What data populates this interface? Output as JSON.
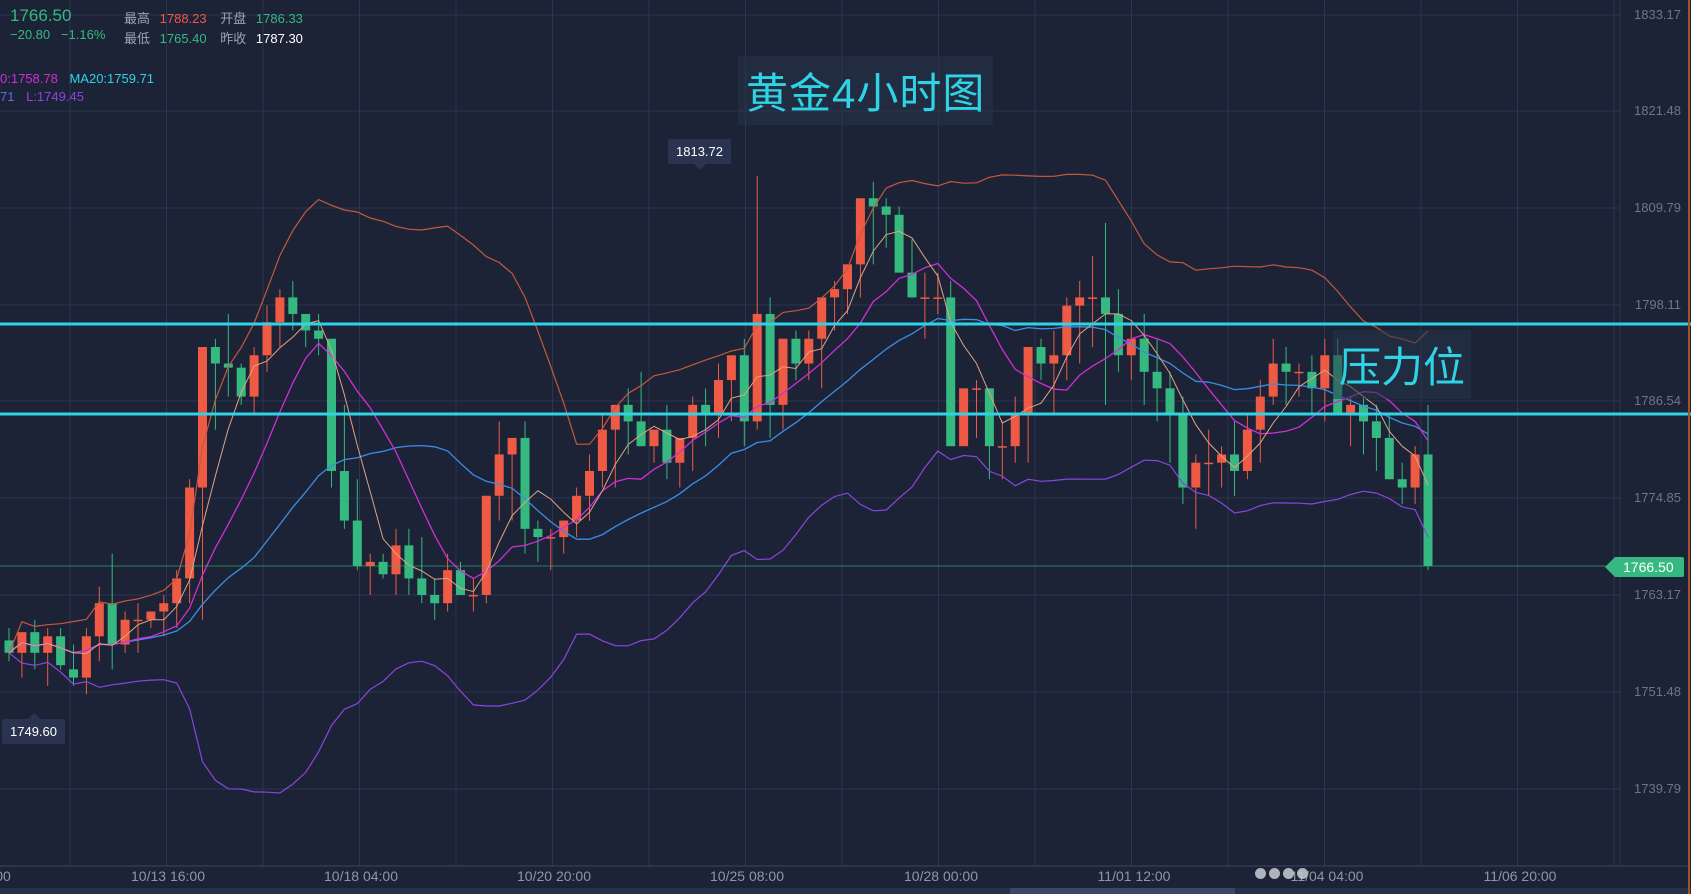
{
  "quote": {
    "last": "1766.50",
    "change": "−20.80",
    "change_pct": "−1.16%",
    "high_label": "最高",
    "high": "1788.23",
    "open_label": "开盘",
    "open": "1786.33",
    "low_label": "最低",
    "low": "1765.40",
    "prev_close_label": "昨收",
    "prev_close": "1787.30"
  },
  "indicators": {
    "ma10": "0:1758.78",
    "ma20": "MA20:1759.71",
    "boll_mid": "71",
    "boll_low": "L:1749.45"
  },
  "annotations": {
    "title": "黄金4小时图",
    "resistance_label": "压力位",
    "max_label": "1813.72",
    "min_label": "1749.60",
    "current_price_tag": "1766.50"
  },
  "colors": {
    "background": "#1c2336",
    "up": "#ef5a45",
    "down": "#35b980",
    "resistance": "#2fd3e6",
    "ma5": "#e0a383",
    "ma10": "#d02ed6",
    "ma20": "#3a8ee6",
    "boll_upper": "#c4583f",
    "boll_lower": "#8a45e0"
  },
  "chart_data": {
    "type": "candlestick",
    "title": "黄金4小时图",
    "xlabel": "",
    "ylabel": "",
    "y_ticks": [
      "1833.17",
      "1821.48",
      "1809.79",
      "1798.11",
      "1786.54",
      "1774.85",
      "1763.17",
      "1751.48",
      "1739.79"
    ],
    "x_ticks": [
      "00",
      "10/13 16:00",
      "10/18 04:00",
      "10/20 20:00",
      "10/25 08:00",
      "10/28 00:00",
      "11/01 12:00",
      "11/04 04:00",
      "11/06 20:00"
    ],
    "ylim": [
      1734,
      1835
    ],
    "resistance_levels": [
      1795.4,
      1784.6
    ],
    "current_price": 1766.5,
    "candles_ohlc": [
      [
        1757.5,
        1759,
        1755,
        1756
      ],
      [
        1756,
        1758,
        1753,
        1758.5
      ],
      [
        1758.5,
        1760,
        1754,
        1756
      ],
      [
        1756,
        1759,
        1752,
        1758
      ],
      [
        1758,
        1759,
        1754,
        1754.5
      ],
      [
        1754,
        1757,
        1752,
        1753
      ],
      [
        1753,
        1759,
        1751,
        1758
      ],
      [
        1758,
        1764,
        1755,
        1762
      ],
      [
        1762,
        1768,
        1754,
        1757
      ],
      [
        1757,
        1761,
        1756,
        1760
      ],
      [
        1760,
        1762,
        1756,
        1760
      ],
      [
        1760,
        1761,
        1759,
        1761
      ],
      [
        1761,
        1763,
        1758,
        1762
      ],
      [
        1762,
        1766,
        1759,
        1765
      ],
      [
        1765,
        1777,
        1762,
        1776
      ],
      [
        1776,
        1793,
        1760,
        1793
      ],
      [
        1793,
        1794,
        1783,
        1791
      ],
      [
        1791,
        1797,
        1787,
        1790.5
      ],
      [
        1790.5,
        1791,
        1786,
        1787
      ],
      [
        1787,
        1793,
        1785,
        1792
      ],
      [
        1792,
        1798,
        1790,
        1796
      ],
      [
        1796,
        1800,
        1793,
        1799
      ],
      [
        1799,
        1801,
        1795,
        1797
      ],
      [
        1797,
        1796,
        1793,
        1795
      ],
      [
        1795,
        1797,
        1792,
        1794
      ],
      [
        1794,
        1794,
        1776,
        1778
      ],
      [
        1778,
        1786,
        1771,
        1772
      ],
      [
        1772,
        1777,
        1766,
        1766.5
      ],
      [
        1766.5,
        1768,
        1763,
        1767
      ],
      [
        1767,
        1768,
        1765,
        1765.5
      ],
      [
        1765.5,
        1771,
        1763,
        1769
      ],
      [
        1769,
        1771,
        1763,
        1765
      ],
      [
        1765,
        1770,
        1762,
        1763
      ],
      [
        1763,
        1765,
        1760,
        1762
      ],
      [
        1762,
        1768,
        1761,
        1766
      ],
      [
        1766,
        1767,
        1763,
        1763
      ],
      [
        1763,
        1765,
        1761,
        1763
      ],
      [
        1763,
        1775,
        1762,
        1775
      ],
      [
        1775,
        1784,
        1772,
        1780
      ],
      [
        1780,
        1782,
        1772,
        1782
      ],
      [
        1782,
        1784,
        1768,
        1771
      ],
      [
        1771,
        1772,
        1767,
        1770
      ],
      [
        1770,
        1771,
        1766,
        1770
      ],
      [
        1770,
        1772,
        1768,
        1772
      ],
      [
        1772,
        1776,
        1770,
        1775
      ],
      [
        1775,
        1780,
        1772,
        1778
      ],
      [
        1778,
        1785,
        1776,
        1783
      ],
      [
        1783,
        1786,
        1776,
        1786
      ],
      [
        1786,
        1788,
        1780,
        1784
      ],
      [
        1784,
        1790,
        1781,
        1781
      ],
      [
        1781,
        1782,
        1779,
        1783
      ],
      [
        1783,
        1786,
        1777,
        1779
      ],
      [
        1779,
        1782,
        1776,
        1782
      ],
      [
        1782,
        1787,
        1778,
        1786
      ],
      [
        1786,
        1788,
        1781,
        1785
      ],
      [
        1785,
        1791,
        1782,
        1789
      ],
      [
        1789,
        1792,
        1784,
        1792
      ],
      [
        1792,
        1794,
        1781,
        1784
      ],
      [
        1784,
        1813.72,
        1783,
        1797
      ],
      [
        1797,
        1799,
        1782,
        1786
      ],
      [
        1786,
        1793,
        1783,
        1794
      ],
      [
        1794,
        1795,
        1789,
        1791
      ],
      [
        1791,
        1795,
        1789,
        1794
      ],
      [
        1794,
        1799,
        1788,
        1799
      ],
      [
        1799,
        1801,
        1795,
        1800
      ],
      [
        1800,
        1803,
        1797,
        1803
      ],
      [
        1803,
        1808,
        1799,
        1811
      ],
      [
        1811,
        1813,
        1803,
        1810
      ],
      [
        1810,
        1811,
        1805,
        1809
      ],
      [
        1809,
        1810,
        1802,
        1802
      ],
      [
        1802,
        1806,
        1799,
        1799
      ],
      [
        1799,
        1802,
        1794,
        1799
      ],
      [
        1799,
        1802,
        1797,
        1799
      ],
      [
        1799,
        1801,
        1781,
        1781
      ],
      [
        1781,
        1788,
        1782,
        1788
      ],
      [
        1788,
        1789,
        1782,
        1788
      ],
      [
        1788,
        1788,
        1777,
        1781
      ],
      [
        1781,
        1784,
        1777,
        1781
      ],
      [
        1781,
        1787,
        1779,
        1785
      ],
      [
        1785,
        1793,
        1779,
        1793
      ],
      [
        1793,
        1794,
        1789,
        1791
      ],
      [
        1791,
        1795,
        1785,
        1792
      ],
      [
        1792,
        1799,
        1789,
        1798
      ],
      [
        1798,
        1801,
        1791,
        1799
      ],
      [
        1799,
        1804,
        1793,
        1799
      ],
      [
        1799,
        1808,
        1786,
        1797
      ],
      [
        1797,
        1800,
        1790,
        1792
      ],
      [
        1792,
        1796,
        1789,
        1794
      ],
      [
        1794,
        1797,
        1786,
        1790
      ],
      [
        1790,
        1794,
        1784,
        1788
      ],
      [
        1788,
        1790,
        1779,
        1785
      ],
      [
        1785,
        1787,
        1774,
        1776
      ],
      [
        1776,
        1780,
        1771,
        1779
      ],
      [
        1779,
        1783,
        1775,
        1779
      ],
      [
        1779,
        1781,
        1776,
        1780
      ],
      [
        1780,
        1784,
        1775,
        1778
      ],
      [
        1778,
        1785,
        1777,
        1783
      ],
      [
        1783,
        1789,
        1779,
        1787
      ],
      [
        1787,
        1794,
        1786,
        1791
      ],
      [
        1791,
        1793,
        1786,
        1790
      ],
      [
        1790,
        1791,
        1787,
        1790
      ],
      [
        1790,
        1792,
        1785,
        1788
      ],
      [
        1788,
        1794,
        1784,
        1792
      ],
      [
        1792,
        1794,
        1785,
        1785
      ],
      [
        1785,
        1787,
        1781,
        1786
      ],
      [
        1786,
        1787,
        1780,
        1784
      ],
      [
        1784,
        1786,
        1778,
        1782
      ],
      [
        1782,
        1785,
        1777,
        1777
      ],
      [
        1777,
        1779,
        1774,
        1776
      ],
      [
        1776,
        1781,
        1774,
        1780
      ],
      [
        1780,
        1786,
        1766,
        1766.5
      ]
    ],
    "series_lines": {
      "ma5": "short-term moving average (salmon)",
      "ma10": "magenta moving average",
      "ma20": "blue moving average",
      "boll_upper": "upper Bollinger band (orange-red)",
      "boll_lower": "lower Bollinger band (purple)"
    }
  }
}
